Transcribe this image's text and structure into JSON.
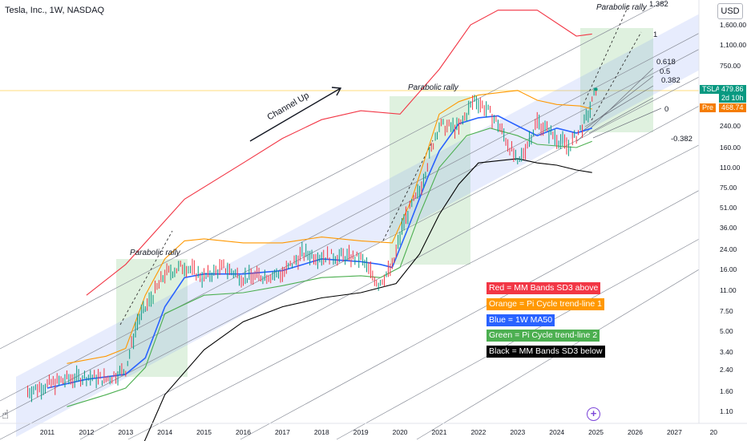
{
  "header": {
    "symbol_line": "Tesla, Inc., 1W, NASDAQ",
    "currency": "USD"
  },
  "price_tags": {
    "symbol": "TSLA",
    "last_price": "479.86",
    "countdown": "2d 10h",
    "pre_label": "Pre",
    "pre_price": "468.74",
    "colors": {
      "last": "#089981",
      "pre": "#f57c00"
    }
  },
  "legend": [
    {
      "text": "Red = MM Bands SD3 above",
      "color": "#f23645"
    },
    {
      "text": "Orange = Pi Cycle trend-line 1",
      "color": "#ff9800"
    },
    {
      "text": "Blue = 1W MA50",
      "color": "#2962ff"
    },
    {
      "text": "Green = Pi Cycle trend-line 2",
      "color": "#4caf50"
    },
    {
      "text": "Black = MM Bands SD3 below",
      "color": "#000000"
    }
  ],
  "chart_data": {
    "type": "line",
    "title": "Tesla, Inc., 1W, NASDAQ",
    "y_scale": "log",
    "x_ticks": [
      "2011",
      "2012",
      "2013",
      "2014",
      "2015",
      "2016",
      "2017",
      "2018",
      "2019",
      "2020",
      "2021",
      "2022",
      "2023",
      "2024",
      "2025",
      "2026",
      "2027",
      "20"
    ],
    "y_ticks": [
      "1,600.00",
      "1,100.00",
      "750.00",
      "240.00",
      "160.00",
      "110.00",
      "75.00",
      "51.00",
      "36.00",
      "24.00",
      "16.00",
      "11.00",
      "7.50",
      "5.00",
      "3.40",
      "2.40",
      "1.60",
      "1.10"
    ],
    "price_series": {
      "name": "TSLA",
      "x": [
        2010.5,
        2011.0,
        2011.5,
        2012.0,
        2012.5,
        2013.0,
        2013.3,
        2013.7,
        2014.0,
        2014.5,
        2015.0,
        2015.5,
        2016.0,
        2016.5,
        2017.0,
        2017.5,
        2018.0,
        2018.5,
        2019.0,
        2019.45,
        2019.8,
        2020.1,
        2020.5,
        2020.9,
        2021.0,
        2021.5,
        2021.9,
        2022.2,
        2022.5,
        2022.9,
        2023.0,
        2023.5,
        2024.0,
        2024.3,
        2024.7,
        2024.85,
        2025.0
      ],
      "y": [
        1.6,
        1.8,
        2.0,
        2.1,
        2.0,
        2.4,
        6.0,
        10.0,
        15.0,
        17.5,
        14.0,
        17.0,
        14.0,
        14.5,
        15.0,
        22.0,
        21.0,
        21.0,
        20.0,
        12.5,
        17.0,
        40.0,
        70.0,
        200.0,
        240.0,
        230.0,
        400.0,
        330.0,
        250.0,
        140.0,
        115.0,
        260.0,
        190.0,
        160.0,
        250.0,
        330.0,
        479.86
      ]
    },
    "indicators": [
      {
        "name": "MM Bands SD3 above",
        "color": "#f23645",
        "x": [
          2012.0,
          2013.0,
          2014.5,
          2016.0,
          2017.0,
          2018.0,
          2019.0,
          2020.0,
          2021.0,
          2021.8,
          2022.5,
          2023.5,
          2024.5,
          2024.9
        ],
        "y": [
          10.0,
          18.0,
          60.0,
          120.0,
          190.0,
          270.0,
          320.0,
          300.0,
          700.0,
          1600.0,
          2100.0,
          2100.0,
          1300.0,
          1350.0
        ]
      },
      {
        "name": "Pi Cycle trend-line 1",
        "color": "#ff9800",
        "x": [
          2011.5,
          2012.5,
          2013.0,
          2013.5,
          2014.0,
          2014.5,
          2015.0,
          2016.0,
          2017.0,
          2018.0,
          2019.0,
          2019.8,
          2020.3,
          2021.0,
          2021.5,
          2022.0,
          2023.0,
          2023.5,
          2024.0,
          2024.6,
          2024.9
        ],
        "y": [
          2.7,
          3.1,
          3.6,
          10.0,
          20.0,
          28.0,
          29.0,
          27.0,
          27.0,
          30.0,
          28.0,
          27.0,
          60.0,
          300.0,
          380.0,
          430.0,
          470.0,
          390.0,
          360.0,
          350.0,
          330.0
        ]
      },
      {
        "name": "1W MA50",
        "color": "#2962ff",
        "x": [
          2011.0,
          2012.0,
          2013.0,
          2013.5,
          2014.0,
          2014.5,
          2015.0,
          2016.0,
          2017.0,
          2018.0,
          2019.0,
          2019.5,
          2019.8,
          2020.2,
          2020.7,
          2021.0,
          2021.5,
          2022.0,
          2022.5,
          2023.0,
          2023.5,
          2024.0,
          2024.5,
          2024.9
        ],
        "y": [
          1.7,
          2.0,
          2.2,
          3.0,
          8.0,
          14.0,
          15.0,
          15.0,
          16.0,
          20.0,
          19.0,
          18.0,
          17.0,
          35.0,
          90.0,
          150.0,
          250.0,
          280.0,
          290.0,
          240.0,
          200.0,
          230.0,
          210.0,
          230.0
        ]
      },
      {
        "name": "Pi Cycle trend-line 2",
        "color": "#4caf50",
        "x": [
          2011.5,
          2012.5,
          2013.0,
          2013.5,
          2014.0,
          2015.0,
          2016.0,
          2017.0,
          2018.0,
          2019.0,
          2019.5,
          2020.0,
          2020.5,
          2021.0,
          2021.7,
          2022.3,
          2023.0,
          2023.5,
          2024.0,
          2024.5,
          2024.9
        ],
        "y": [
          1.2,
          1.5,
          1.7,
          2.5,
          7.0,
          10.0,
          10.5,
          12.0,
          14.0,
          14.5,
          14.0,
          17.0,
          45.0,
          110.0,
          200.0,
          230.0,
          200.0,
          170.0,
          165.0,
          160.0,
          180.0
        ]
      },
      {
        "name": "MM Bands SD3 below",
        "color": "#000000",
        "x": [
          2013.4,
          2014.0,
          2015.0,
          2016.0,
          2017.0,
          2018.0,
          2019.0,
          2019.9,
          2020.5,
          2021.0,
          2021.5,
          2022.0,
          2023.0,
          2023.5,
          2024.0,
          2024.5,
          2024.9
        ],
        "y": [
          0.55,
          1.5,
          3.5,
          6.0,
          8.0,
          9.5,
          10.5,
          12.5,
          22.0,
          45.0,
          80.0,
          120.0,
          130.0,
          120.0,
          115.0,
          105.0,
          100.0
        ]
      }
    ],
    "fibonacci_labels": [
      "1.382",
      "1",
      "0.618",
      "0.5",
      "0.382",
      "0",
      "-0.382"
    ],
    "annotations": [
      "Channel Up",
      "Parabolic rally",
      "Parabolic rally",
      "Parabolic rally"
    ]
  }
}
